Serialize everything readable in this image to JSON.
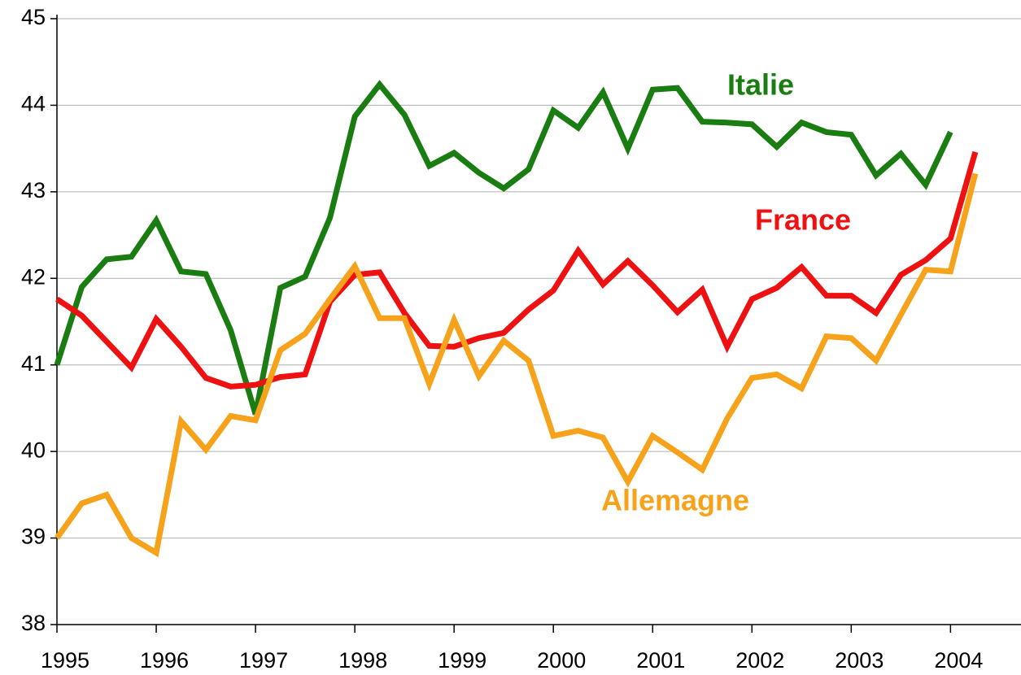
{
  "chart_data": {
    "type": "line",
    "x": [
      1995,
      1995.25,
      1995.5,
      1995.75,
      1996,
      1996.25,
      1996.5,
      1996.75,
      1997,
      1997.25,
      1997.5,
      1997.75,
      1998,
      1998.25,
      1998.5,
      1998.75,
      1999,
      1999.25,
      1999.5,
      1999.75,
      2000,
      2000.25,
      2000.5,
      2000.75,
      2001,
      2001.25,
      2001.5,
      2001.75,
      2002,
      2002.25,
      2002.5,
      2002.75,
      2003,
      2003.25,
      2003.5,
      2003.75,
      2004,
      2004.25
    ],
    "series": [
      {
        "name": "Italie",
        "color": "#1a7d12",
        "values": [
          41.0,
          41.9,
          42.22,
          42.25,
          42.67,
          42.08,
          42.05,
          41.4,
          40.43,
          41.89,
          42.02,
          42.7,
          43.87,
          44.24,
          43.89,
          43.3,
          43.45,
          43.22,
          43.04,
          43.26,
          43.94,
          43.74,
          44.15,
          43.5,
          44.18,
          44.2,
          43.81,
          43.8,
          43.78,
          43.52,
          43.8,
          43.69,
          43.66,
          43.19,
          43.44,
          43.08,
          43.69,
          null
        ]
      },
      {
        "name": "France",
        "color": "#ee1111",
        "values": [
          41.76,
          41.57,
          41.27,
          40.97,
          41.53,
          41.21,
          40.85,
          40.75,
          40.77,
          40.86,
          40.89,
          41.73,
          42.04,
          42.07,
          41.6,
          41.22,
          41.21,
          41.31,
          41.37,
          41.64,
          41.86,
          42.32,
          41.93,
          42.2,
          41.92,
          41.61,
          41.87,
          41.21,
          41.76,
          41.89,
          42.13,
          41.8,
          41.8,
          41.6,
          42.04,
          42.21,
          42.46,
          43.46
        ]
      },
      {
        "name": "Allemagne",
        "color": "#f7a21b",
        "values": [
          39.0,
          39.4,
          39.5,
          39.0,
          38.83,
          40.35,
          40.02,
          40.41,
          40.36,
          41.17,
          41.36,
          41.76,
          42.14,
          41.54,
          41.54,
          40.78,
          41.52,
          40.87,
          41.28,
          41.05,
          40.18,
          40.24,
          40.16,
          39.65,
          40.18,
          39.99,
          39.79,
          40.38,
          40.85,
          40.89,
          40.73,
          41.33,
          41.31,
          41.05,
          41.58,
          42.1,
          42.08,
          43.21
        ]
      }
    ],
    "xlim": [
      1995,
      2004.71
    ],
    "xticks": [
      1995,
      1996,
      1997,
      1998,
      1999,
      2000,
      2001,
      2002,
      2003,
      2004
    ],
    "ylim": [
      38,
      45
    ],
    "yticks": [
      38,
      39,
      40,
      41,
      42,
      43,
      44,
      45
    ],
    "grid": true
  }
}
